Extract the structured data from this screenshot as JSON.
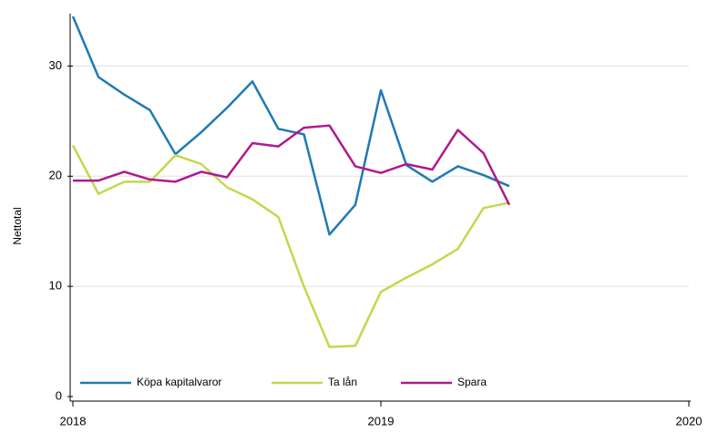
{
  "chart_data": {
    "type": "line",
    "y_label": "Nettotal",
    "x": [
      2018,
      2018.083,
      2018.167,
      2018.25,
      2018.333,
      2018.417,
      2018.5,
      2018.583,
      2018.667,
      2018.75,
      2018.833,
      2018.917,
      2019,
      2019.083,
      2019.167,
      2019.25,
      2019.333,
      2019.417
    ],
    "series": [
      {
        "name": "Köpa kapitalvaror",
        "color": "#1f7ab4",
        "values": [
          34.5,
          29,
          27.4,
          26,
          22,
          24,
          26.2,
          28.6,
          24.3,
          23.8,
          14.7,
          17.4,
          27.8,
          21,
          19.5,
          20.9,
          20.1,
          19.1
        ]
      },
      {
        "name": "Ta lån",
        "color": "#c3d84c",
        "values": [
          22.8,
          18.4,
          19.5,
          19.5,
          21.9,
          21.1,
          19,
          17.9,
          16.3,
          10,
          4.5,
          4.6,
          9.5,
          10.8,
          12,
          13.4,
          17.1,
          17.6
        ]
      },
      {
        "name": "Spara",
        "color": "#b0198f",
        "values": [
          19.6,
          19.6,
          20.4,
          19.7,
          19.5,
          20.4,
          19.9,
          23,
          22.7,
          24.4,
          24.6,
          20.9,
          20.3,
          21.1,
          20.6,
          24.2,
          22.1,
          17.4
        ]
      }
    ],
    "xlim": [
      2018,
      2020
    ],
    "xticks": [
      2018,
      2019,
      2020
    ],
    "ylim": [
      0,
      35
    ],
    "yticks": [
      0,
      10,
      20,
      30
    ],
    "grid": true,
    "legend": "lower left"
  }
}
